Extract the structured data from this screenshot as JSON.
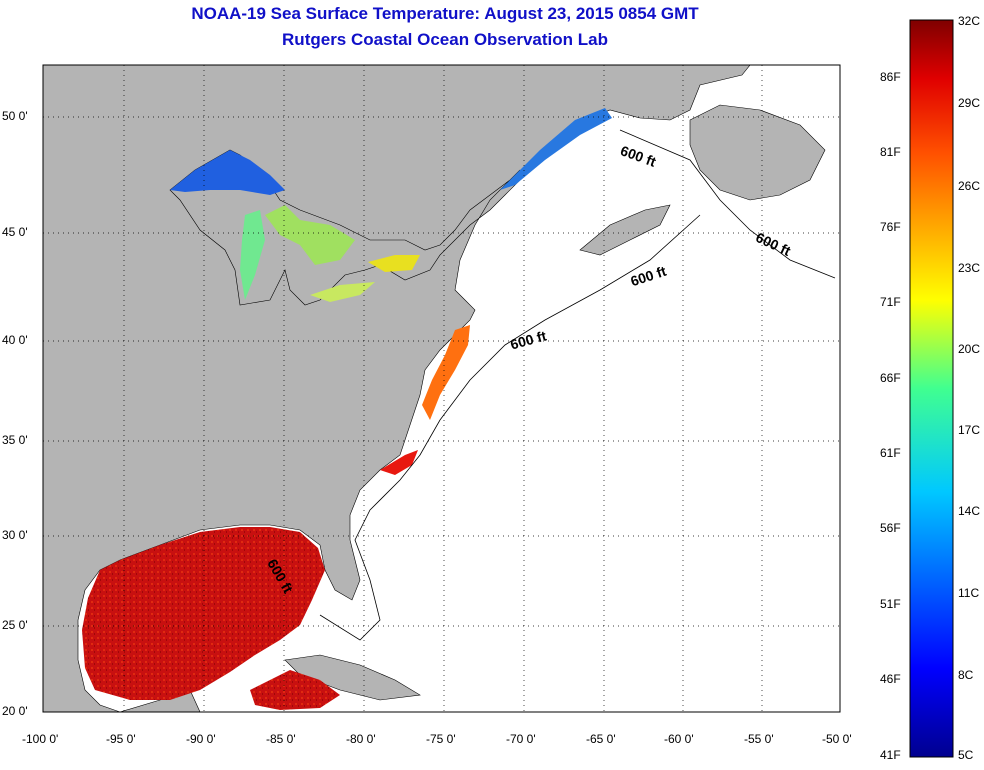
{
  "title_line1": "NOAA-19 Sea Surface Temperature:  August 23, 2015 0854 GMT",
  "title_line2": "Rutgers Coastal Ocean Observation Lab",
  "lat_ticks": [
    "50 0'",
    "45 0'",
    "40 0'",
    "35 0'",
    "30 0'",
    "25 0'",
    "20 0'"
  ],
  "lon_ticks": [
    "-100 0'",
    "-95 0'",
    "-90 0'",
    "-85 0'",
    "-80 0'",
    "-75 0'",
    "-70 0'",
    "-65 0'",
    "-60 0'",
    "-55 0'",
    "-50 0'"
  ],
  "isobath_label": "600 ft",
  "colorbar": {
    "celsius": [
      "32C",
      "29C",
      "26C",
      "23C",
      "20C",
      "17C",
      "14C",
      "11C",
      "8C",
      "5C"
    ],
    "fahrenheit": [
      "86F",
      "81F",
      "76F",
      "71F",
      "66F",
      "61F",
      "56F",
      "51F",
      "46F",
      "41F"
    ]
  },
  "colors": {
    "land": "#b4b4b4",
    "ocean": "#ffffff",
    "title": "#1010c8",
    "warm": "#c81010",
    "cool": "#2050e0"
  }
}
